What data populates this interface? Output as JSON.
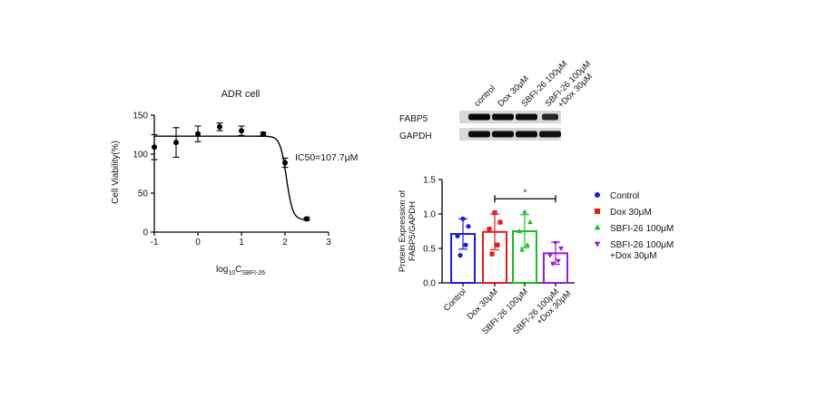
{
  "chart_data": [
    {
      "type": "scatter",
      "title": "ADR cell",
      "ylabel": "Cell Viability(%)",
      "xlabel_main": "log",
      "xlabel_sub1": "10",
      "xlabel_C": "C",
      "xlabel_sub2": "SBFI-26",
      "xlim": [
        -1,
        3
      ],
      "ylim": [
        0,
        150
      ],
      "xticks": [
        -1,
        0,
        1,
        2,
        3
      ],
      "yticks": [
        0,
        50,
        100,
        150
      ],
      "annotation": "IC50=107.7μM",
      "points": [
        {
          "x": -1.0,
          "y": 109,
          "err": 16
        },
        {
          "x": -0.5,
          "y": 115,
          "err": 19
        },
        {
          "x": 0.0,
          "y": 126,
          "err": 10
        },
        {
          "x": 0.5,
          "y": 135,
          "err": 5
        },
        {
          "x": 1.0,
          "y": 130,
          "err": 6
        },
        {
          "x": 1.5,
          "y": 126,
          "err": 2
        },
        {
          "x": 2.0,
          "y": 89,
          "err": 6
        },
        {
          "x": 2.5,
          "y": 17,
          "err": 2
        }
      ],
      "fit": {
        "top": 123,
        "bottom": 16,
        "log_ic50": 2.032,
        "hill": -6
      }
    },
    {
      "type": "bar",
      "ylabel": "Protein Expression of FABP5/GAPDH",
      "ylabel_lines": [
        "Protein Expression of",
        "FABP5/GAPDH"
      ],
      "ylim": [
        0,
        1.5
      ],
      "yticks": [
        "0.0",
        "0.5",
        "1.0",
        "1.5"
      ],
      "categories": [
        "Control",
        "Dox 30μM",
        "SBFI-26 100μM",
        "SBFI-26 100μM +Dox 30μM"
      ],
      "category_label_lines": [
        [
          "Control"
        ],
        [
          "Dox 30μM"
        ],
        [
          "SBFI-26 100μM"
        ],
        [
          "SBFI-26 100μM",
          "+Dox 30μM"
        ]
      ],
      "values": [
        0.71,
        0.74,
        0.75,
        0.43
      ],
      "errors": [
        0.22,
        0.26,
        0.24,
        0.16
      ],
      "colors": [
        "#1a1ae6",
        "#e61a1a",
        "#1bbf1b",
        "#9a1ad6"
      ],
      "markers": [
        "circle",
        "square",
        "triangle-up",
        "triangle-down"
      ],
      "points": [
        [
          0.93,
          0.82,
          0.68,
          0.55,
          0.4
        ],
        [
          1.02,
          0.88,
          0.78,
          0.55,
          0.42
        ],
        [
          1.03,
          0.88,
          0.75,
          0.55,
          0.48
        ],
        [
          0.58,
          0.5,
          0.4,
          0.32,
          0.28
        ]
      ],
      "significance": {
        "label": "*",
        "from": 1,
        "to": 3,
        "y": 1.22
      },
      "legend": [
        {
          "lines": [
            "Control"
          ],
          "color": "#1a1ae6",
          "marker": "circle"
        },
        {
          "lines": [
            "Dox 30μM"
          ],
          "color": "#e61a1a",
          "marker": "square"
        },
        {
          "lines": [
            "SBFI-26 100μM"
          ],
          "color": "#1bbf1b",
          "marker": "triangle-up"
        },
        {
          "lines": [
            "SBFI-26 100μM",
            "+Dox 30μM"
          ],
          "color": "#9a1ad6",
          "marker": "triangle-down"
        }
      ]
    }
  ],
  "western_blot": {
    "lane_labels": [
      [
        "control"
      ],
      [
        "Dox 30μM"
      ],
      [
        "SBFI-26 100μM"
      ],
      [
        "SBFI-26 100μM",
        "+Dox 30μM"
      ]
    ],
    "rows": [
      {
        "label": "FABP5",
        "intensity": [
          0.95,
          0.92,
          0.9,
          0.72
        ]
      },
      {
        "label": "GAPDH",
        "intensity": [
          0.9,
          0.9,
          0.9,
          0.88
        ]
      }
    ]
  }
}
